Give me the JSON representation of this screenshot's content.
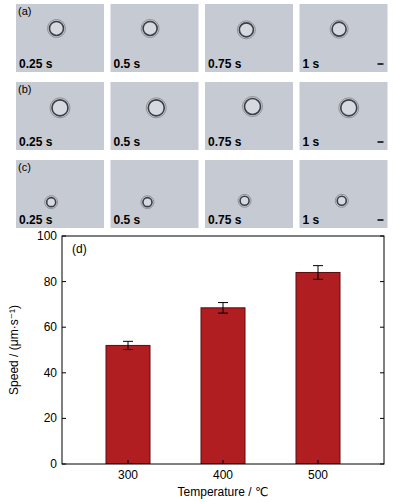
{
  "image_panels": [
    {
      "label": "(a)",
      "times": [
        "0.25 s",
        "0.5 s",
        "0.75 s",
        "1 s"
      ]
    },
    {
      "label": "(b)",
      "times": [
        "0.25 s",
        "0.5 s",
        "0.75 s",
        "1 s"
      ]
    },
    {
      "label": "(c)",
      "times": [
        "0.25 s",
        "0.5 s",
        "0.75 s",
        "1 s"
      ]
    }
  ],
  "chart_data": {
    "type": "bar",
    "annotation": "(d)",
    "x_label": "Temperature / ℃",
    "y_label": "Speed / (μm·s⁻¹)",
    "categories": [
      "300",
      "400",
      "500"
    ],
    "values": [
      52,
      68.5,
      84
    ],
    "errors": [
      1.8,
      2.3,
      3
    ],
    "color": "#b01e22",
    "ylim": [
      0,
      100
    ],
    "yticks": [
      0,
      20,
      40,
      60,
      80,
      100
    ]
  }
}
